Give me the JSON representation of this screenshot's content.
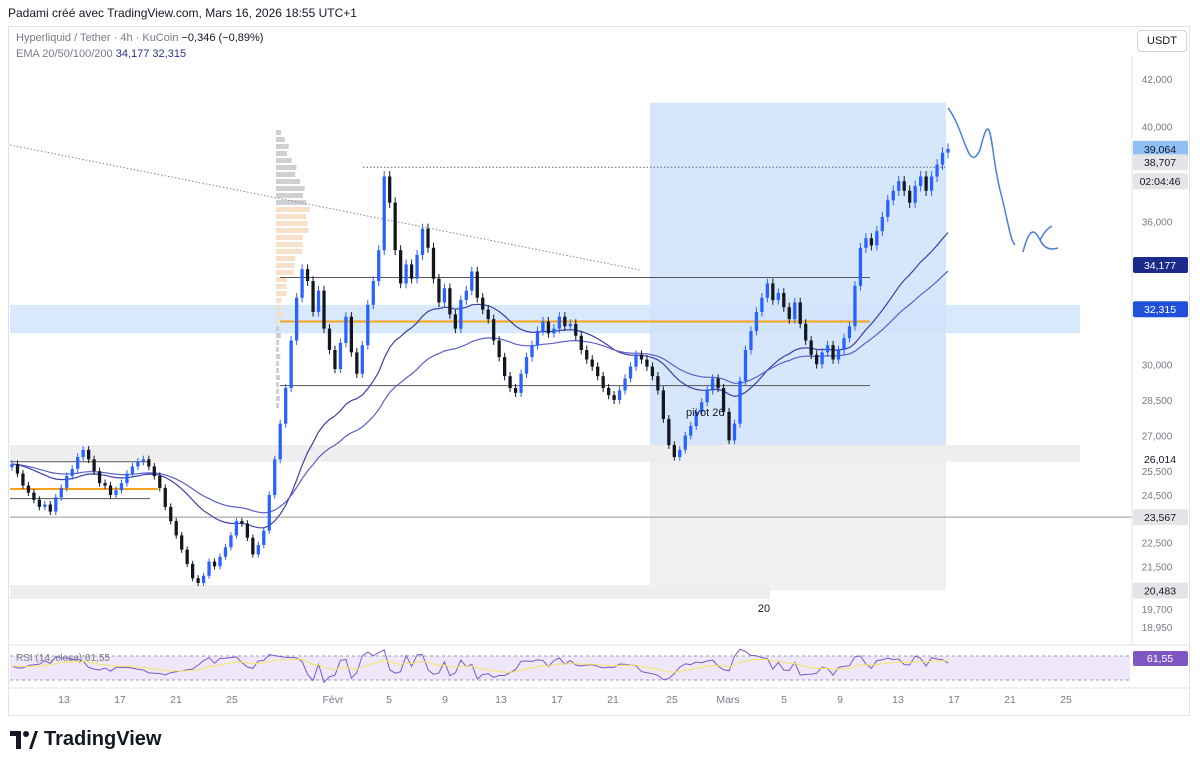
{
  "header": {
    "text": "Padami créé avec TradingView.com, Mars 16, 2026 18:55 UTC+1"
  },
  "legend": {
    "symbol": "Hyperliquid / Tether · 4h · KuCoin",
    "change": "−0,346 (−0,89%)",
    "ema_label": "EMA 20/50/100/200",
    "ema_value_1": "34,177",
    "ema_value_2": "32,315"
  },
  "unit_button": "USDT",
  "rsi_legend": "RSI (14, close) 61,55",
  "footer": {
    "brand": "TradingView"
  },
  "annotations": {
    "pivot_label": "pivot 26",
    "bottom_box_label": "20"
  },
  "colors": {
    "up": "#2962ff",
    "down": "#131722",
    "ema_fast": "#3f3fa3",
    "ema_slow": "#5b5fc7",
    "orange": "#f7a21b",
    "box_blue": "#cfe3fb",
    "box_gray": "#f0f0f0",
    "rsi_line": "#7e57c2",
    "rsi_ma": "#f5e663",
    "rsi_band": "#efe8fa"
  },
  "chart_data": {
    "type": "candlestick",
    "ylim": [
      18400,
      42800
    ],
    "y_ticks": [
      "42,000",
      "40,000",
      "36,000",
      "30,000",
      "28,500",
      "27,000",
      "25,500",
      "24,500",
      "22,500",
      "21,500",
      "19,700",
      "18,950"
    ],
    "y_tick_values": [
      42000,
      40000,
      36000,
      30000,
      28500,
      27000,
      25500,
      24500,
      22500,
      21500,
      19700,
      18950
    ],
    "x_ticks": [
      "13",
      "17",
      "21",
      "25",
      "Févr",
      "5",
      "9",
      "13",
      "17",
      "21",
      "25",
      "Mars",
      "5",
      "9",
      "13",
      "17",
      "21",
      "25"
    ],
    "price_labels": [
      {
        "value": "39,064",
        "price": 39064,
        "style": "blue-light"
      },
      {
        "value": "38,707",
        "price": 38500,
        "style": "gray"
      },
      {
        "value": "02:04:46",
        "price": 37700,
        "style": "gray"
      },
      {
        "value": "34,177",
        "price": 34177,
        "style": "navy"
      },
      {
        "value": "32,315",
        "price": 32315,
        "style": "blue"
      },
      {
        "value": "26,014",
        "price": 26014,
        "style": "plain"
      },
      {
        "value": "23,567",
        "price": 23567,
        "style": "gray"
      },
      {
        "value": "20,483",
        "price": 20483,
        "style": "gray"
      }
    ],
    "horizontal_levels": [
      {
        "price": 38290,
        "style": "dotted"
      },
      {
        "price": 33650,
        "style": "solid"
      },
      {
        "price": 31800,
        "style": "orange"
      },
      {
        "price": 29100,
        "style": "solid"
      },
      {
        "price": 25900,
        "style": "solid"
      },
      {
        "price": 24750,
        "style": "orange"
      },
      {
        "price": 23567,
        "style": "solid-long"
      }
    ],
    "close_series": [
      25800,
      25400,
      24900,
      24600,
      24300,
      24000,
      24100,
      23800,
      24400,
      24800,
      25300,
      25600,
      26100,
      26400,
      26000,
      25500,
      25000,
      24900,
      24500,
      24700,
      25000,
      25400,
      25700,
      25900,
      26000,
      25700,
      25300,
      24800,
      24000,
      23400,
      22800,
      22200,
      21600,
      21000,
      20800,
      21100,
      21700,
      21500,
      21900,
      22300,
      22800,
      23400,
      23300,
      22700,
      22000,
      22400,
      23000,
      24500,
      26000,
      27500,
      29000,
      31000,
      32800,
      34000,
      33500,
      32200,
      33100,
      31500,
      30600,
      29800,
      30900,
      32000,
      30500,
      29600,
      30800,
      32500,
      33500,
      34800,
      37900,
      36800,
      34800,
      33400,
      34200,
      33600,
      34600,
      35700,
      34900,
      33600,
      32600,
      33200,
      32100,
      31500,
      32700,
      33100,
      33900,
      32800,
      32300,
      31900,
      31000,
      30300,
      29500,
      29000,
      28800,
      29600,
      30300,
      30800,
      31400,
      31800,
      31300,
      31500,
      32000,
      31600,
      31700,
      31200,
      30600,
      30200,
      29900,
      29500,
      29000,
      28700,
      28500,
      28900,
      29400,
      29900,
      30400,
      30200,
      29900,
      29500,
      28900,
      27700,
      26600,
      26100,
      26400,
      27000,
      27400,
      28000,
      28400,
      28900,
      29400,
      29000,
      28000,
      26800,
      27500,
      29300,
      30600,
      31400,
      32200,
      32800,
      33400,
      32700,
      33000,
      32400,
      31900,
      32600,
      31700,
      31000,
      30400,
      30000,
      30500,
      30800,
      30200,
      30600,
      31100,
      31600,
      33300,
      34900,
      35300,
      35000,
      35600,
      36200,
      36900,
      37300,
      37700,
      37300,
      36800,
      37500,
      37900,
      37300,
      37900,
      38400,
      38900,
      39064
    ]
  }
}
